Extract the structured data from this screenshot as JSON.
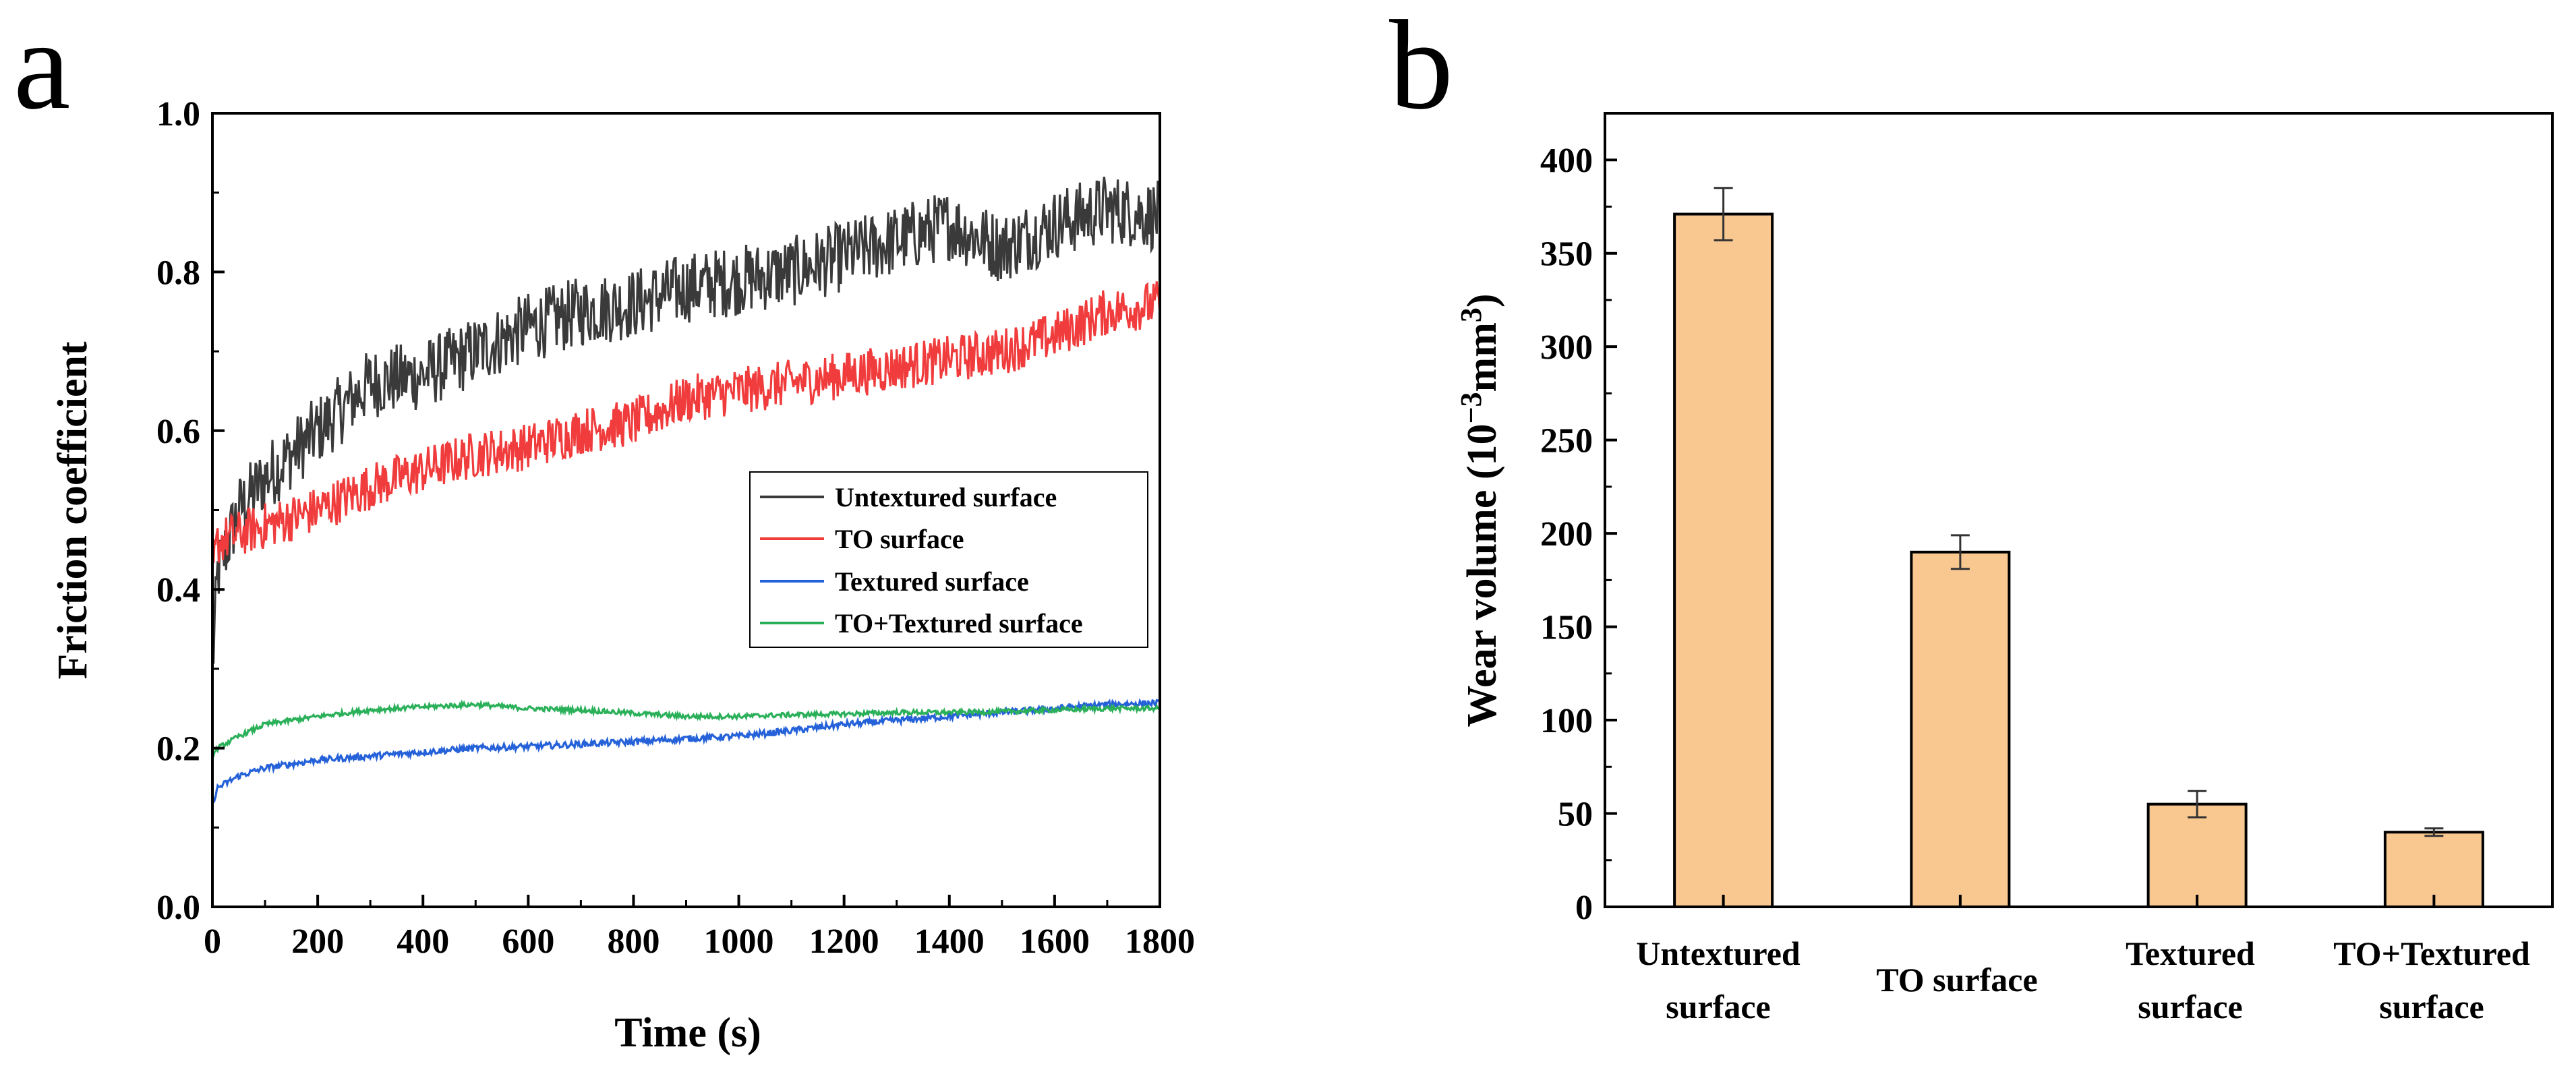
{
  "panels": {
    "a": {
      "letter": "a"
    },
    "b": {
      "letter": "b"
    }
  },
  "chart_data": [
    {
      "panel": "a",
      "type": "line",
      "title": "",
      "xlabel": "Time (s)",
      "ylabel": "Friction coefficient",
      "xlim": [
        0,
        1800
      ],
      "ylim": [
        0,
        1.0
      ],
      "xticks": [
        0,
        200,
        400,
        600,
        800,
        1000,
        1200,
        1400,
        1600,
        1800
      ],
      "yticks": [
        "0.0",
        "0.2",
        "0.4",
        "0.6",
        "0.8",
        "1.0"
      ],
      "legend_position": "center-right",
      "series": [
        {
          "name": "Untextured surface",
          "color": "#3a3a3a",
          "noise": 0.045,
          "x": [
            0,
            10,
            50,
            100,
            200,
            300,
            400,
            500,
            600,
            700,
            800,
            900,
            1000,
            1100,
            1200,
            1300,
            1400,
            1500,
            1600,
            1700,
            1800
          ],
          "y": [
            0.3,
            0.42,
            0.5,
            0.54,
            0.6,
            0.66,
            0.67,
            0.7,
            0.73,
            0.75,
            0.76,
            0.78,
            0.79,
            0.8,
            0.82,
            0.84,
            0.86,
            0.83,
            0.86,
            0.88,
            0.87
          ]
        },
        {
          "name": "TO surface",
          "color": "#f03c3c",
          "noise": 0.03,
          "x": [
            0,
            10,
            50,
            100,
            200,
            300,
            400,
            500,
            600,
            700,
            800,
            900,
            1000,
            1100,
            1200,
            1300,
            1400,
            1500,
            1600,
            1700,
            1800
          ],
          "y": [
            0.42,
            0.46,
            0.47,
            0.48,
            0.5,
            0.53,
            0.55,
            0.57,
            0.58,
            0.6,
            0.61,
            0.64,
            0.65,
            0.66,
            0.67,
            0.68,
            0.69,
            0.7,
            0.72,
            0.75,
            0.76
          ]
        },
        {
          "name": "Textured surface",
          "color": "#2561d8",
          "noise": 0.004,
          "x": [
            0,
            10,
            50,
            100,
            200,
            300,
            400,
            500,
            600,
            700,
            800,
            900,
            1000,
            1100,
            1200,
            1300,
            1400,
            1500,
            1600,
            1700,
            1800
          ],
          "y": [
            0.13,
            0.15,
            0.165,
            0.175,
            0.185,
            0.19,
            0.195,
            0.2,
            0.202,
            0.205,
            0.208,
            0.212,
            0.215,
            0.222,
            0.23,
            0.235,
            0.24,
            0.245,
            0.25,
            0.255,
            0.257
          ]
        },
        {
          "name": "TO+Textured surface",
          "color": "#2bb05a",
          "noise": 0.003,
          "x": [
            0,
            10,
            50,
            100,
            200,
            300,
            400,
            500,
            600,
            700,
            800,
            900,
            1000,
            1100,
            1200,
            1300,
            1400,
            1500,
            1600,
            1700,
            1800
          ],
          "y": [
            0.19,
            0.2,
            0.215,
            0.23,
            0.24,
            0.248,
            0.252,
            0.255,
            0.25,
            0.248,
            0.244,
            0.24,
            0.24,
            0.242,
            0.243,
            0.245,
            0.245,
            0.246,
            0.248,
            0.25,
            0.25
          ]
        }
      ]
    },
    {
      "panel": "b",
      "type": "bar",
      "title": "",
      "xlabel": "",
      "ylabel": "Wear volume (10",
      "ylabel_sup1": "−3",
      "ylabel_mid": "mm",
      "ylabel_sup2": "3",
      "ylabel_end": ")",
      "ylim": [
        0,
        425
      ],
      "yticks": [
        0,
        50,
        100,
        150,
        200,
        250,
        300,
        350,
        400
      ],
      "bar_color": "#f9c891",
      "categories": [
        {
          "line1": "Untextured",
          "line2": "surface"
        },
        {
          "line1": "TO surface",
          "line2": ""
        },
        {
          "line1": "Textured",
          "line2": "surface"
        },
        {
          "line1": "TO+Textured",
          "line2": "surface"
        }
      ],
      "values": [
        371,
        190,
        55,
        40
      ],
      "errors": [
        14,
        9,
        7,
        2
      ]
    }
  ]
}
